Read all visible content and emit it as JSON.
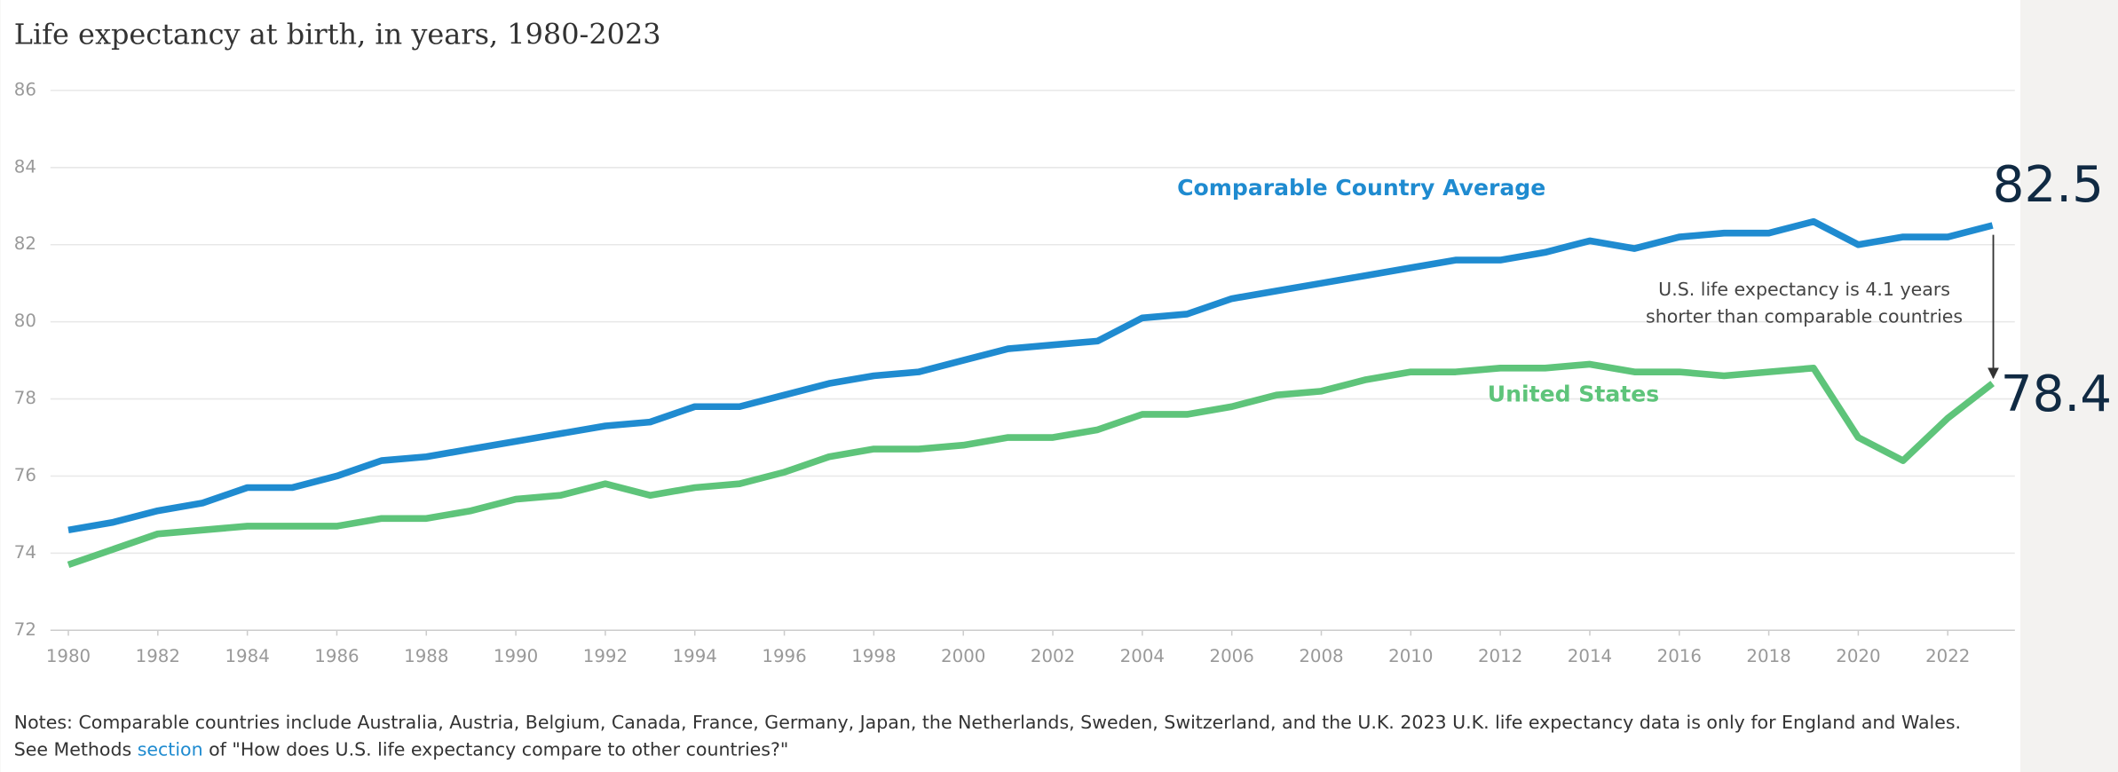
{
  "chart_data": {
    "type": "line",
    "title": "Life expectancy at birth, in years, 1980-2023",
    "x": [
      1980,
      1981,
      1982,
      1983,
      1984,
      1985,
      1986,
      1987,
      1988,
      1989,
      1990,
      1991,
      1992,
      1993,
      1994,
      1995,
      1996,
      1997,
      1998,
      1999,
      2000,
      2001,
      2002,
      2003,
      2004,
      2005,
      2006,
      2007,
      2008,
      2009,
      2010,
      2011,
      2012,
      2013,
      2014,
      2015,
      2016,
      2017,
      2018,
      2019,
      2020,
      2021,
      2022,
      2023
    ],
    "xlim": [
      1979.6,
      2023.5
    ],
    "xticks": [
      1980,
      1982,
      1984,
      1986,
      1988,
      1990,
      1992,
      1994,
      1996,
      1998,
      2000,
      2002,
      2004,
      2006,
      2008,
      2010,
      2012,
      2014,
      2016,
      2018,
      2020,
      2022
    ],
    "ylim": [
      72,
      86
    ],
    "yticks": [
      72,
      74,
      76,
      78,
      80,
      82,
      84,
      86
    ],
    "grid": true,
    "series": [
      {
        "name": "Comparable Country Average",
        "color": "#1f8bd0",
        "end_label": "82.5",
        "values": [
          74.6,
          74.8,
          75.1,
          75.3,
          75.7,
          75.7,
          76.0,
          76.4,
          76.5,
          76.7,
          76.9,
          77.1,
          77.3,
          77.4,
          77.8,
          77.8,
          78.1,
          78.4,
          78.6,
          78.7,
          79.0,
          79.3,
          79.4,
          79.5,
          80.1,
          80.2,
          80.6,
          80.8,
          81.0,
          81.2,
          81.4,
          81.6,
          81.6,
          81.8,
          82.1,
          81.9,
          82.2,
          82.3,
          82.3,
          82.6,
          82.0,
          82.2,
          82.2,
          82.5
        ]
      },
      {
        "name": "United States",
        "color": "#5ec47a",
        "end_label": "78.4",
        "values": [
          73.7,
          74.1,
          74.5,
          74.6,
          74.7,
          74.7,
          74.7,
          74.9,
          74.9,
          75.1,
          75.4,
          75.5,
          75.8,
          75.5,
          75.7,
          75.8,
          76.1,
          76.5,
          76.7,
          76.7,
          76.8,
          77.0,
          77.0,
          77.2,
          77.6,
          77.6,
          77.8,
          78.1,
          78.2,
          78.5,
          78.7,
          78.7,
          78.8,
          78.8,
          78.9,
          78.7,
          78.7,
          78.6,
          78.7,
          78.8,
          77.0,
          76.4,
          77.5,
          78.4
        ]
      }
    ],
    "annotation": {
      "lines": [
        "U.S. life expectancy is 4.1 years",
        "shorter than comparable countries"
      ]
    },
    "notes": {
      "line1": "Notes: Comparable countries include Australia, Austria, Belgium, Canada, France, Germany, Japan, the Netherlands, Sweden, Switzerland, and the U.K. 2023 U.K. life expectancy data is only for England and Wales.",
      "before": "See Methods",
      "link": "section",
      "after": "of \"How does U.S. life expectancy compare to other countries?\""
    }
  }
}
